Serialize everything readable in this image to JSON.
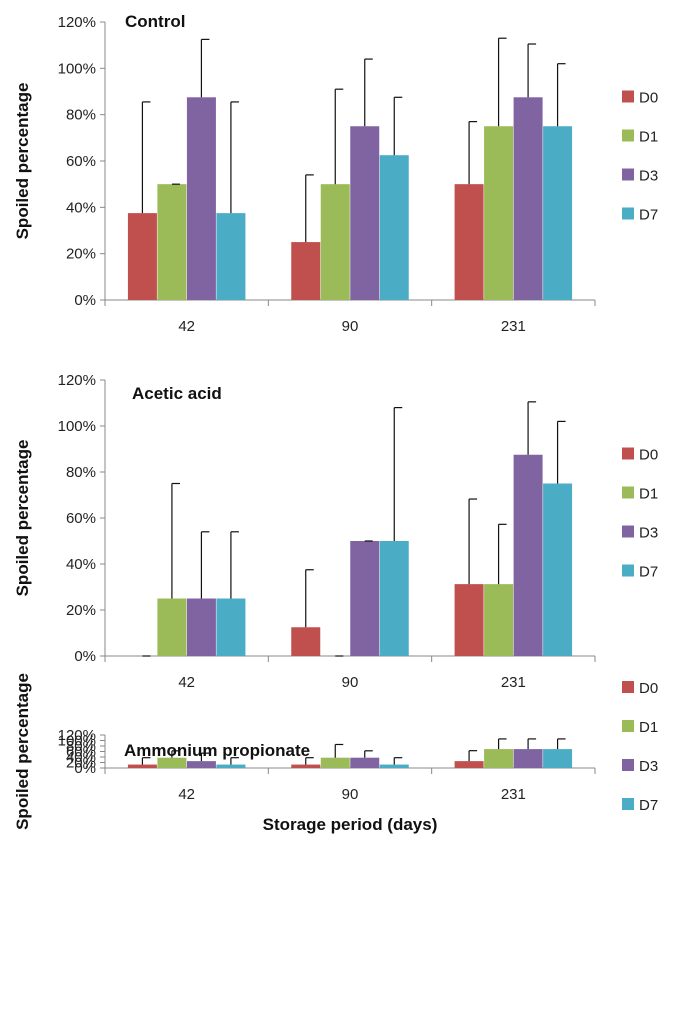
{
  "chart_data": [
    {
      "type": "bar",
      "title": "Control",
      "ylabel": "Spoiled percentage",
      "xlabel": "",
      "categories": [
        "42",
        "90",
        "231"
      ],
      "ylim": [
        0,
        120
      ],
      "yticks": [
        "0%",
        "20%",
        "40%",
        "60%",
        "80%",
        "100%",
        "120%"
      ],
      "error_bars": true,
      "legend_position": "right",
      "series": [
        {
          "name": "D0",
          "color": "#c0504d",
          "values": [
            37.5,
            25,
            50
          ],
          "errors": [
            48,
            29,
            27
          ]
        },
        {
          "name": "D1",
          "color": "#9bbb59",
          "values": [
            50,
            50,
            75
          ],
          "errors": [
            0,
            41,
            38
          ]
        },
        {
          "name": "D3",
          "color": "#8064a2",
          "values": [
            87.5,
            75,
            87.5
          ],
          "errors": [
            25,
            29,
            23
          ]
        },
        {
          "name": "D7",
          "color": "#4bacc6",
          "values": [
            37.5,
            62.5,
            75
          ],
          "errors": [
            48,
            25,
            27
          ]
        }
      ]
    },
    {
      "type": "bar",
      "title": "Acetic acid",
      "ylabel": "Spoiled percentage",
      "xlabel": "",
      "categories": [
        "42",
        "90",
        "231"
      ],
      "ylim": [
        0,
        120
      ],
      "yticks": [
        "0%",
        "20%",
        "40%",
        "60%",
        "80%",
        "100%",
        "120%"
      ],
      "error_bars": true,
      "legend_position": "right",
      "series": [
        {
          "name": "D0",
          "color": "#c0504d",
          "values": [
            0,
            12.5,
            31.25
          ],
          "errors": [
            0,
            25,
            37
          ]
        },
        {
          "name": "D1",
          "color": "#9bbb59",
          "values": [
            25,
            0,
            31.25
          ],
          "errors": [
            50,
            0,
            26
          ]
        },
        {
          "name": "D3",
          "color": "#8064a2",
          "values": [
            25,
            50,
            87.5
          ],
          "errors": [
            29,
            0,
            23
          ]
        },
        {
          "name": "D7",
          "color": "#4bacc6",
          "values": [
            25,
            50,
            75
          ],
          "errors": [
            29,
            58,
            27
          ]
        }
      ]
    },
    {
      "type": "bar",
      "title": "Ammonium propionate",
      "ylabel": "Spoiled percentage",
      "xlabel": "Storage period (days)",
      "categories": [
        "42",
        "90",
        "231"
      ],
      "ylim": [
        0,
        120
      ],
      "yticks": [
        "0%",
        "20%",
        "40%",
        "60%",
        "80%",
        "100%",
        "120%"
      ],
      "error_bars": true,
      "legend_position": "right",
      "series": [
        {
          "name": "D0",
          "color": "#c0504d",
          "values": [
            12.5,
            12.5,
            25
          ],
          "errors": [
            25,
            25,
            38
          ]
        },
        {
          "name": "D1",
          "color": "#9bbb59",
          "values": [
            37.5,
            37.5,
            68.75
          ],
          "errors": [
            25,
            48,
            37
          ]
        },
        {
          "name": "D3",
          "color": "#8064a2",
          "values": [
            25,
            37.5,
            68.75
          ],
          "errors": [
            29,
            25,
            37
          ]
        },
        {
          "name": "D7",
          "color": "#4bacc6",
          "values": [
            12.5,
            12.5,
            68.75
          ],
          "errors": [
            25,
            25,
            37
          ]
        }
      ]
    }
  ]
}
